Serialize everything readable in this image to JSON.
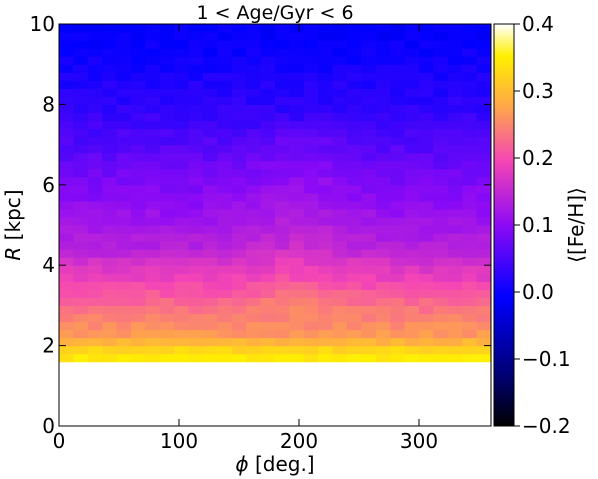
{
  "chart_data": {
    "type": "heatmap",
    "title": "1 < Age/Gyr < 6",
    "xlabel_symbol": "ϕ",
    "xlabel_rest": " [deg.]",
    "ylabel_symbol": "R",
    "ylabel_rest": " [kpc]",
    "colorbar_label": "⟨[Fe/H]⟩",
    "colormap": "gnuplot2",
    "xlim": [
      0,
      360
    ],
    "ylim": [
      0,
      10
    ],
    "clim": [
      -0.2,
      0.4
    ],
    "xticks": [
      "0",
      "100",
      "200",
      "300"
    ],
    "xtick_values": [
      0,
      100,
      200,
      300
    ],
    "yticks": [
      "0",
      "2",
      "4",
      "6",
      "8",
      "10"
    ],
    "ytick_values": [
      0,
      2,
      4,
      6,
      8,
      10
    ],
    "cticks": [
      "−0.2",
      "−0.1",
      "0.0",
      "0.1",
      "0.2",
      "0.3",
      "0.4"
    ],
    "ctick_values": [
      -0.2,
      -0.1,
      0.0,
      0.1,
      0.2,
      0.3,
      0.4
    ],
    "x_edges": [
      0,
      360
    ],
    "x_bins": 30,
    "y_edges": [
      1.6,
      10
    ],
    "y_bins": 42,
    "radial_profile_R": [
      1.6,
      1.8,
      2.0,
      2.2,
      2.6,
      3.0,
      3.6,
      4.0,
      4.4,
      5.0,
      5.6,
      6.0,
      6.6,
      7.0,
      7.6,
      8.0,
      8.6,
      9.0,
      9.6,
      10.0
    ],
    "radial_profile_feh": [
      0.35,
      0.34,
      0.31,
      0.27,
      0.25,
      0.23,
      0.19,
      0.17,
      0.14,
      0.12,
      0.1,
      0.09,
      0.07,
      0.055,
      0.04,
      0.025,
      0.015,
      0.005,
      -0.005,
      -0.01
    ],
    "azimuthal_variation": "slightly metal-rich bulge around ϕ≈200° at R 3–7 kpc; empty (white) below R≈1.6 kpc"
  }
}
